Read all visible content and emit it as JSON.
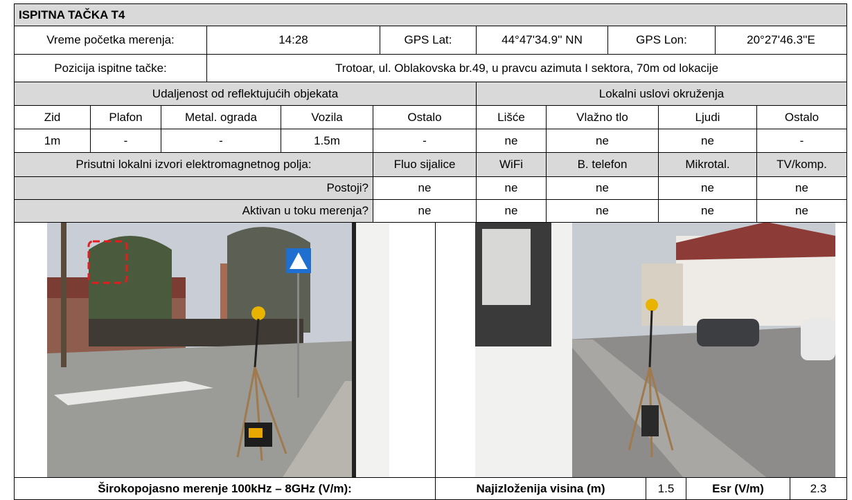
{
  "header": {
    "title": "ISPITNA TAČKA T4"
  },
  "measurement": {
    "start_label": "Vreme početka merenja:",
    "start_time": "14:28",
    "lat_label": "GPS Lat:",
    "lat": "44°47'34.9'' NN",
    "lon_label": "GPS Lon:",
    "lon": "20°27'46.3''E",
    "position_label": "Pozicija ispitne tačke:",
    "position": "Trotoar, ul. Oblakovska br.49, u pravcu azimuta I sektora, 70m od lokacije"
  },
  "reflective": {
    "title": "Udaljenost od reflektujućih objekata",
    "columns": [
      "Zid",
      "Plafon",
      "Metal. ograda",
      "Vozila",
      "Ostalo"
    ],
    "values": [
      "1m",
      "-",
      "-",
      "1.5m",
      "-"
    ]
  },
  "environment": {
    "title": "Lokalni uslovi okruženja",
    "columns": [
      "Lišće",
      "Vlažno tlo",
      "Ljudi",
      "Ostalo"
    ],
    "values": [
      "ne",
      "ne",
      "ne",
      "-"
    ]
  },
  "sources": {
    "title": "Prisutni lokalni izvori elektromagnetnog polja:",
    "columns": [
      "Fluo sijalice",
      "WiFi",
      "B. telefon",
      "Mikrotal.",
      "TV/komp."
    ],
    "rows": [
      {
        "label": "Postoji?",
        "values": [
          "ne",
          "ne",
          "ne",
          "ne",
          "ne"
        ]
      },
      {
        "label": "Aktivan u toku merenja?",
        "values": [
          "ne",
          "ne",
          "ne",
          "ne",
          "ne"
        ]
      }
    ]
  },
  "result": {
    "broadband_label": "Širokopojasno merenje 100kHz – 8GHz (V/m):",
    "height_label": "Najizloženija visina (m)",
    "height": "1.5",
    "esr_label": "Esr (V/m)",
    "esr": "2.3"
  }
}
